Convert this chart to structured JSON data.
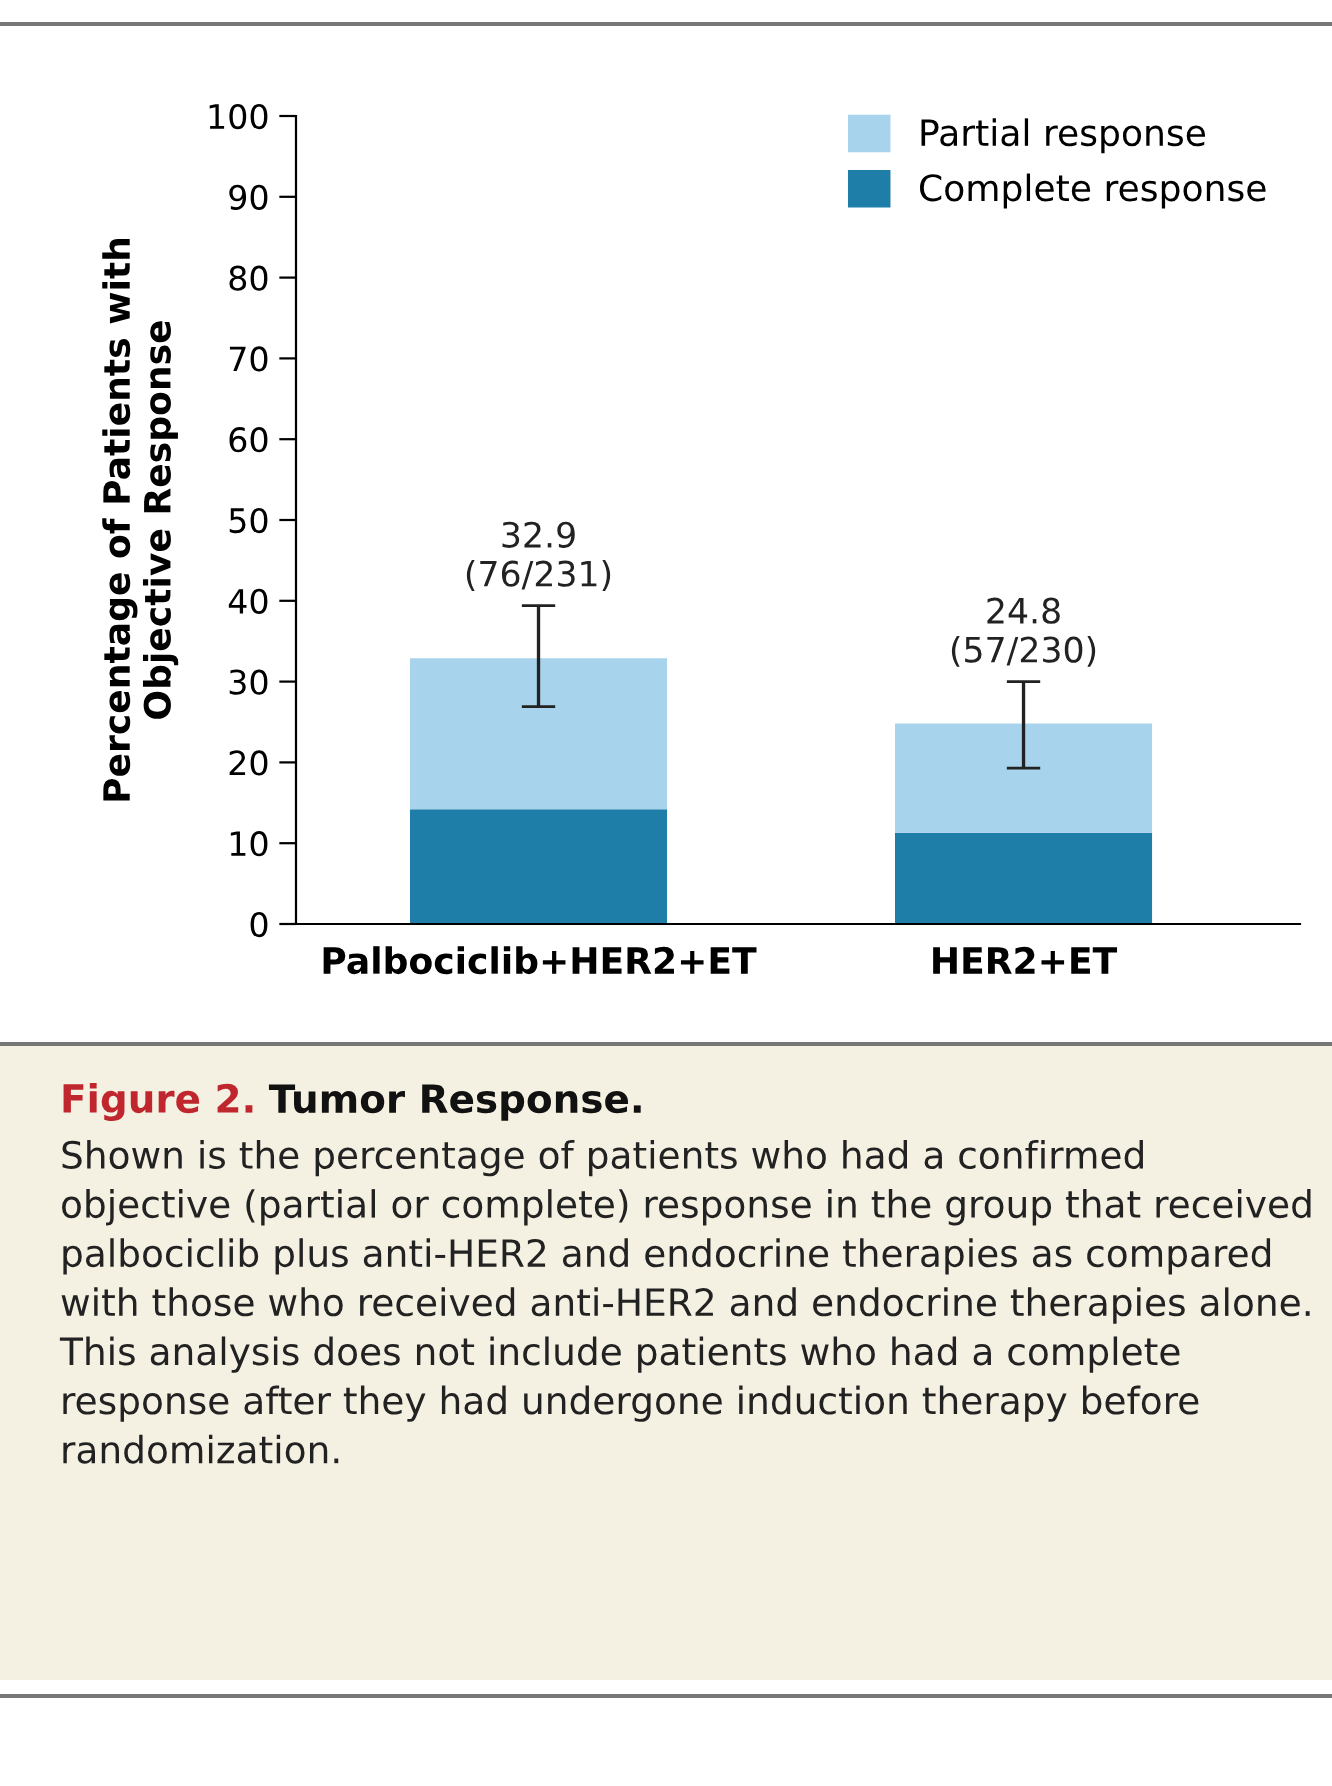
{
  "chart_data": {
    "type": "bar",
    "stacked": true,
    "title": "Figure 2.",
    "subtitle": "Tumor Response.",
    "ylabel": "Percentage of Patients with\nObjective Response",
    "categories": [
      "Palbociclib+HER2+ET",
      "HER2+ET"
    ],
    "series": [
      {
        "name": "Complete response",
        "color": "#1f7ea8",
        "values": [
          14.2,
          11.3
        ]
      },
      {
        "name": "Partial response",
        "color": "#a8d3ec",
        "values": [
          18.7,
          13.5
        ],
        "errors": [
          [
            26.9,
            39.4
          ],
          [
            19.3,
            30.0
          ]
        ]
      }
    ],
    "totals": [
      "32.9\n(76/231)",
      "24.8\n(57/230)"
    ],
    "ylim": [
      0,
      100
    ],
    "yticks": [
      0,
      10,
      20,
      30,
      40,
      50,
      60,
      70,
      80,
      90,
      100
    ],
    "legend": "top right",
    "grid": false,
    "annotations": [
      "Shown is the percentage of patients who had a confirmed objective (partial or complete) response in the group that received palbociclib plus anti-HER2 and endocrine therapies as compared with those who received anti-HER2 and endocrine therapies alone. This analysis does not include patients who had a complete response after they had undergone induction therapy before randomization."
    ]
  }
}
